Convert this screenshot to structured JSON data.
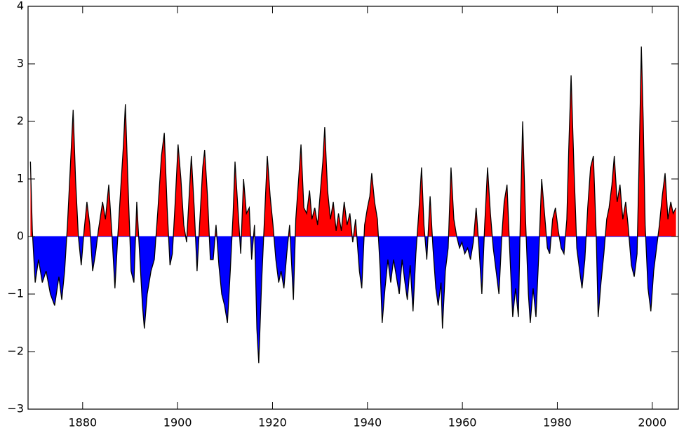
{
  "chart_data": {
    "type": "area-line",
    "x": [
      1869.0,
      1869.4,
      1870.0,
      1870.7,
      1871.5,
      1872.3,
      1873.2,
      1874.1,
      1875.0,
      1875.6,
      1876.2,
      1876.8,
      1877.4,
      1878.0,
      1878.5,
      1879.1,
      1879.7,
      1880.3,
      1880.9,
      1881.5,
      1882.1,
      1882.7,
      1883.3,
      1884.2,
      1884.8,
      1885.5,
      1886.2,
      1886.8,
      1887.4,
      1888.0,
      1888.6,
      1889.0,
      1889.6,
      1890.2,
      1890.8,
      1891.4,
      1892.0,
      1892.6,
      1893.0,
      1893.6,
      1894.4,
      1895.1,
      1895.8,
      1896.6,
      1897.2,
      1897.8,
      1898.4,
      1898.9,
      1899.5,
      1900.1,
      1900.7,
      1901.3,
      1901.9,
      1902.5,
      1902.9,
      1903.5,
      1904.1,
      1904.7,
      1905.3,
      1905.7,
      1906.3,
      1906.9,
      1907.5,
      1908.1,
      1908.7,
      1909.3,
      1909.9,
      1910.5,
      1911.1,
      1911.7,
      1912.1,
      1912.7,
      1913.3,
      1913.9,
      1914.5,
      1915.1,
      1915.6,
      1916.2,
      1916.7,
      1917.1,
      1917.7,
      1918.3,
      1918.9,
      1919.5,
      1920.1,
      1920.7,
      1921.3,
      1921.8,
      1922.4,
      1923.0,
      1923.6,
      1924.4,
      1924.9,
      1925.5,
      1926.0,
      1926.6,
      1927.2,
      1927.8,
      1928.3,
      1928.9,
      1929.5,
      1930.1,
      1930.6,
      1931.0,
      1931.6,
      1932.2,
      1932.8,
      1933.4,
      1933.9,
      1934.5,
      1935.1,
      1935.7,
      1936.3,
      1936.9,
      1937.5,
      1938.3,
      1938.8,
      1939.4,
      1940.0,
      1940.5,
      1940.9,
      1941.5,
      1942.1,
      1942.7,
      1943.1,
      1943.7,
      1944.3,
      1944.9,
      1945.5,
      1946.1,
      1946.7,
      1947.3,
      1947.9,
      1948.4,
      1949.0,
      1949.6,
      1950.2,
      1950.8,
      1951.4,
      1951.9,
      1952.5,
      1953.2,
      1953.8,
      1954.4,
      1954.9,
      1955.5,
      1955.8,
      1956.4,
      1957.0,
      1957.6,
      1958.2,
      1958.8,
      1959.4,
      1959.9,
      1960.5,
      1961.1,
      1961.7,
      1962.3,
      1962.9,
      1963.5,
      1964.1,
      1964.7,
      1965.3,
      1965.9,
      1966.5,
      1967.1,
      1967.7,
      1968.3,
      1968.8,
      1969.4,
      1970.0,
      1970.6,
      1971.2,
      1971.8,
      1972.2,
      1972.7,
      1973.3,
      1973.9,
      1974.3,
      1974.9,
      1975.5,
      1976.1,
      1976.7,
      1977.3,
      1977.9,
      1978.4,
      1979.0,
      1979.6,
      1980.2,
      1980.8,
      1981.4,
      1982.0,
      1982.4,
      1982.9,
      1983.5,
      1984.1,
      1984.7,
      1985.2,
      1985.8,
      1986.4,
      1987.0,
      1987.6,
      1988.2,
      1988.6,
      1989.2,
      1989.8,
      1990.4,
      1990.9,
      1991.5,
      1992.0,
      1992.6,
      1993.2,
      1993.8,
      1994.4,
      1994.9,
      1995.6,
      1996.2,
      1996.8,
      1997.2,
      1997.7,
      1998.1,
      1998.5,
      1999.1,
      1999.7,
      2000.3,
      2000.9,
      2001.5,
      2002.1,
      2002.7,
      2003.3,
      2003.9,
      2004.4,
      2005.0
    ],
    "values": [
      1.3,
      0.1,
      -0.8,
      -0.4,
      -0.8,
      -0.6,
      -1.0,
      -1.2,
      -0.7,
      -1.1,
      -0.6,
      0.2,
      1.2,
      2.2,
      1.0,
      0.0,
      -0.5,
      0.1,
      0.6,
      0.2,
      -0.6,
      -0.3,
      0.1,
      0.6,
      0.3,
      0.9,
      0.0,
      -0.9,
      0.0,
      0.8,
      1.6,
      2.3,
      0.8,
      -0.6,
      -0.8,
      0.6,
      -0.3,
      -1.2,
      -1.6,
      -1.0,
      -0.6,
      -0.4,
      0.4,
      1.4,
      1.8,
      0.5,
      -0.5,
      -0.3,
      0.6,
      1.6,
      1.0,
      0.2,
      -0.1,
      0.8,
      1.4,
      0.5,
      -0.6,
      0.3,
      1.2,
      1.5,
      0.7,
      -0.4,
      -0.4,
      0.2,
      -0.5,
      -1.0,
      -1.2,
      -1.5,
      -0.6,
      0.4,
      1.3,
      0.5,
      -0.3,
      1.0,
      0.4,
      0.5,
      -0.4,
      0.2,
      -1.6,
      -2.2,
      -0.8,
      0.3,
      1.4,
      0.7,
      0.2,
      -0.4,
      -0.8,
      -0.6,
      -0.9,
      -0.3,
      0.2,
      -1.1,
      0.3,
      1.0,
      1.6,
      0.5,
      0.4,
      0.8,
      0.3,
      0.5,
      0.2,
      0.8,
      1.3,
      1.9,
      0.8,
      0.3,
      0.6,
      0.1,
      0.4,
      0.1,
      0.6,
      0.2,
      0.4,
      -0.1,
      0.3,
      -0.6,
      -0.9,
      0.2,
      0.5,
      0.7,
      1.1,
      0.6,
      0.3,
      -0.6,
      -1.5,
      -0.9,
      -0.4,
      -0.8,
      -0.4,
      -0.7,
      -1.0,
      -0.4,
      -0.8,
      -1.1,
      -0.5,
      -1.3,
      -0.3,
      0.4,
      1.2,
      0.2,
      -0.4,
      0.7,
      -0.2,
      -0.9,
      -1.2,
      -0.8,
      -1.6,
      -0.6,
      -0.2,
      1.2,
      0.3,
      0.0,
      -0.2,
      -0.1,
      -0.3,
      -0.2,
      -0.4,
      -0.1,
      0.5,
      -0.2,
      -1.0,
      0.2,
      1.2,
      0.4,
      -0.2,
      -0.6,
      -1.0,
      0.0,
      0.6,
      0.9,
      -0.3,
      -1.4,
      -0.9,
      -1.4,
      0.3,
      2.0,
      0.3,
      -1.0,
      -1.5,
      -0.9,
      -1.4,
      -0.3,
      1.0,
      0.4,
      -0.2,
      -0.3,
      0.3,
      0.5,
      0.1,
      -0.2,
      -0.3,
      0.3,
      1.5,
      2.8,
      1.2,
      -0.2,
      -0.6,
      -0.9,
      -0.4,
      0.5,
      1.2,
      1.4,
      0.0,
      -1.4,
      -0.8,
      -0.3,
      0.3,
      0.5,
      0.9,
      1.4,
      0.6,
      0.9,
      0.3,
      0.6,
      0.2,
      -0.5,
      -0.7,
      -0.3,
      1.2,
      3.3,
      2.0,
      0.2,
      -0.9,
      -1.3,
      -0.6,
      -0.2,
      0.2,
      0.7,
      1.1,
      0.3,
      0.6,
      0.4,
      0.5
    ],
    "color": "#000000",
    "positive_color": "#ff0000",
    "negative_color": "#0000ff",
    "xlim": [
      1868.5,
      2005.5
    ],
    "xticks": [
      1880,
      1900,
      1920,
      1940,
      1960,
      1980,
      2000
    ],
    "ylim": [
      -3,
      4
    ],
    "yticks": [
      {
        "value": -3,
        "label": "−3"
      },
      {
        "value": -2,
        "label": "−2"
      },
      {
        "value": -1,
        "label": "−1"
      },
      0,
      1,
      2,
      3,
      4
    ]
  }
}
